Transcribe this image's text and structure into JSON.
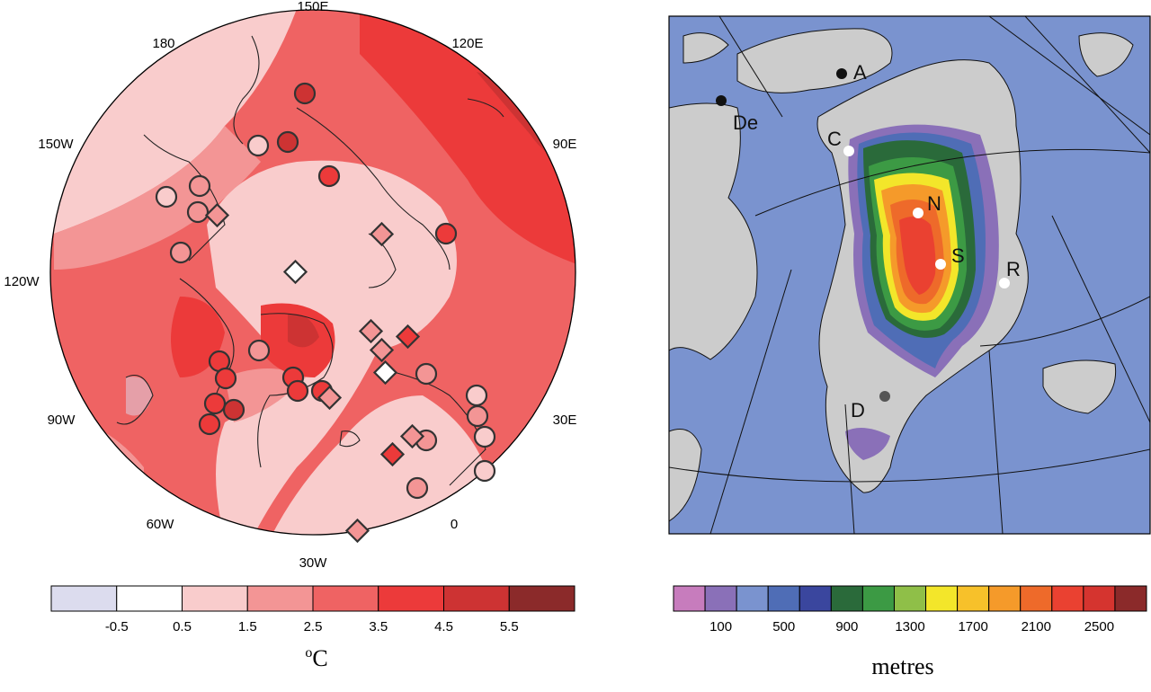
{
  "left_panel": {
    "longitude_labels": [
      "150E",
      "120E",
      "90E",
      "30E",
      "0",
      "30W",
      "60W",
      "90W",
      "120W",
      "150W",
      "180"
    ],
    "colorbar": {
      "colors": [
        "#dcdcee",
        "#ffffff",
        "#f9cccc",
        "#f39595",
        "#ef6363",
        "#ec3a3a",
        "#cd3333",
        "#8b2a2a"
      ],
      "tick_labels": [
        "-0.5",
        "0.5",
        "1.5",
        "2.5",
        "3.5",
        "4.5",
        "5.5"
      ],
      "unit": "oC",
      "unit_base": "C",
      "unit_super": "o"
    }
  },
  "right_panel": {
    "site_labels": [
      "A",
      "De",
      "C",
      "N",
      "S",
      "R",
      "D"
    ],
    "colorbar": {
      "colors": [
        "#c77cbd",
        "#8a70b8",
        "#7a93cf",
        "#4f6db6",
        "#3a469e",
        "#2a6a3a",
        "#3c9a44",
        "#8fbf48",
        "#f3e62a",
        "#f7c12a",
        "#f59a2a",
        "#ee6a2a",
        "#ea4131",
        "#d5342f",
        "#8b2a2a"
      ],
      "tick_labels": [
        "100",
        "500",
        "900",
        "1300",
        "1700",
        "2100",
        "2500"
      ],
      "unit": "metres"
    }
  }
}
